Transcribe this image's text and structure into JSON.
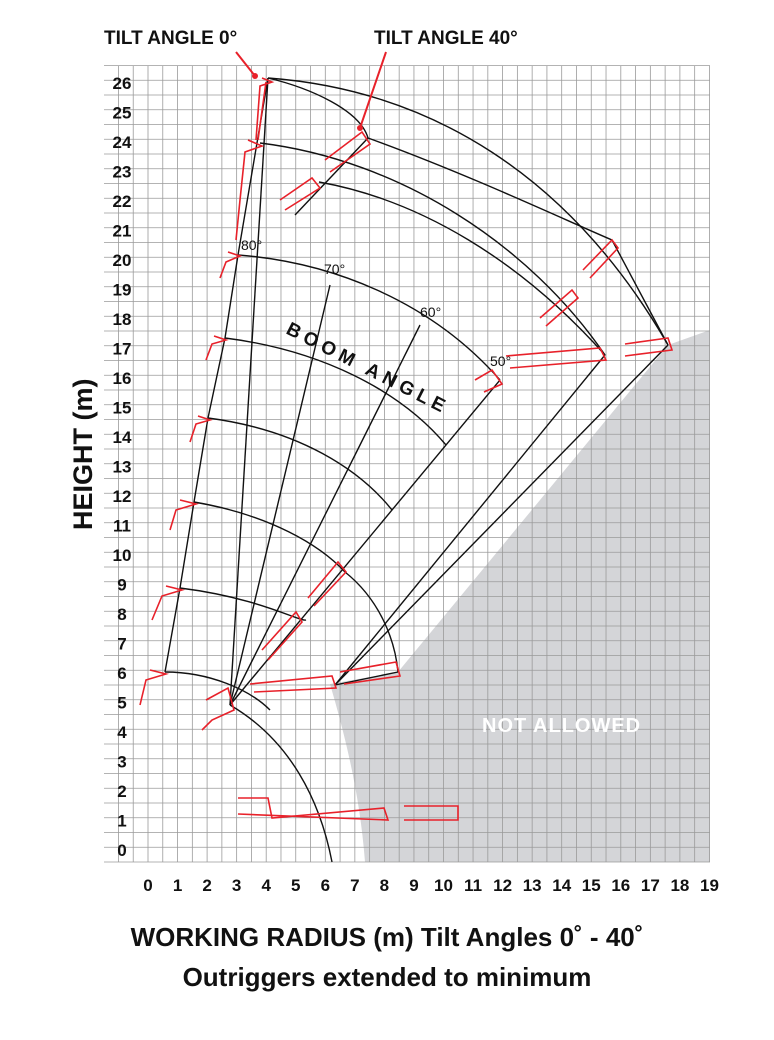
{
  "chart_data": {
    "type": "working-range-diagram",
    "ylabel": "HEIGHT (m)",
    "x_ticks": [
      "0",
      "1",
      "2",
      "3",
      "4",
      "5",
      "6",
      "7",
      "8",
      "9",
      "10",
      "11",
      "12",
      "13",
      "14",
      "15",
      "16",
      "17",
      "18",
      "19"
    ],
    "y_ticks": [
      "0",
      "1",
      "2",
      "3",
      "4",
      "5",
      "6",
      "7",
      "8",
      "9",
      "10",
      "11",
      "12",
      "13",
      "14",
      "15",
      "16",
      "17",
      "18",
      "19",
      "20",
      "21",
      "22",
      "23",
      "24",
      "25",
      "26"
    ],
    "xlim": [
      0,
      19
    ],
    "ylim": [
      0,
      27
    ],
    "grid": true,
    "pivot": [
      2.7,
      5.3
    ],
    "telescopic_steps": [
      {
        "label_angle": "0° tilt",
        "points": [
          [
            0.6,
            6.5
          ],
          [
            1.1,
            9.4
          ],
          [
            1.6,
            12.1
          ],
          [
            2.0,
            15.1
          ],
          [
            2.5,
            17.9
          ],
          [
            3.0,
            20.6
          ],
          [
            3.3,
            22.5
          ],
          [
            3.7,
            24.4
          ],
          [
            4.1,
            26.2
          ]
        ]
      },
      {
        "label_angle": "40° tilt",
        "points": [
          [
            5.1,
            8.4
          ],
          [
            6.5,
            9.9
          ],
          [
            7.4,
            24.6
          ],
          [
            5.6,
            23.0
          ]
        ]
      }
    ],
    "boom_angle_rays": [
      {
        "label": "80°",
        "tip": [
          3.0,
          20.6
        ]
      },
      {
        "label": "70°",
        "tip": [
          6.2,
          19.8
        ]
      },
      {
        "label": "60°",
        "tip": [
          9.3,
          18.3
        ]
      },
      {
        "label": "50°",
        "tip": [
          11.9,
          16.3
        ]
      }
    ],
    "envelope_outer_points": [
      [
        4.1,
        26.2
      ],
      [
        7.4,
        24.6
      ],
      [
        11.0,
        23.0
      ],
      [
        14.5,
        21.2
      ],
      [
        15.6,
        20.9
      ],
      [
        17.5,
        17.5
      ],
      [
        15.5,
        17.0
      ],
      [
        12.0,
        16.3
      ],
      [
        8.4,
        6.4
      ],
      [
        6.2,
        6.0
      ],
      [
        6.0,
        0
      ]
    ],
    "not_allowed_region": {
      "label": "NOT ALLOWED",
      "color": "#d4d5d8"
    },
    "annotations": {
      "tilt_0": "TILT ANGLE  0°",
      "tilt_40": "TILT ANGLE  40°",
      "boom_angle": "BOOM ANGLE",
      "deg_80": "80°",
      "deg_70": "70°",
      "deg_60": "60°",
      "deg_50": "50°"
    },
    "colors": {
      "boom": "#e8212a",
      "grid": "#9a9a9a",
      "envelope": "#111111",
      "not_allowed": "#d4d5d8"
    }
  },
  "caption": {
    "line1": "WORKING RADIUS (m)  Tilt Angles 0˚ - 40˚",
    "line2": "Outriggers extended to minimum"
  }
}
